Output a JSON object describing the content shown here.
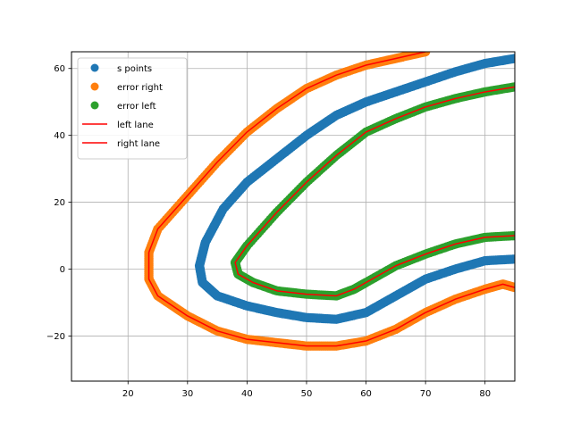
{
  "chart_data": {
    "type": "scatter",
    "title": "",
    "xlabel": "",
    "ylabel": "",
    "xlim": [
      10.5,
      85
    ],
    "ylim": [
      -33.5,
      65
    ],
    "grid": true,
    "legend_position": "upper-left",
    "xticks": [
      20,
      30,
      40,
      50,
      60,
      70,
      80
    ],
    "yticks": [
      -20,
      0,
      20,
      40,
      60
    ],
    "series": [
      {
        "name": "s points",
        "kind": "scatter",
        "color": "#1f77b4",
        "x": [
          85,
          80,
          75,
          70,
          65,
          60,
          55,
          50,
          45,
          40,
          36,
          33,
          32,
          32.5,
          35,
          40,
          45,
          50,
          55,
          60,
          65,
          70,
          75,
          80,
          85
        ],
        "y": [
          63,
          61.5,
          59,
          56,
          53,
          50,
          46,
          40,
          33,
          26,
          18,
          8,
          1,
          -4,
          -8,
          -11,
          -13,
          -14.5,
          -15,
          -13,
          -8,
          -3,
          0,
          2.5,
          3
        ]
      },
      {
        "name": "error right",
        "kind": "scatter",
        "color": "#ff7f0e",
        "x": [
          70,
          65,
          60,
          55,
          50,
          45,
          40,
          35,
          30,
          25,
          23.5,
          23.5,
          25,
          30,
          35,
          40,
          45,
          50,
          55,
          60,
          65,
          70,
          75,
          80,
          83,
          85
        ],
        "y": [
          65,
          63,
          61,
          58,
          54,
          48,
          41,
          32,
          22,
          12,
          5,
          -3,
          -8,
          -14,
          -18.5,
          -21,
          -22,
          -23,
          -23,
          -21.5,
          -18,
          -13,
          -9,
          -6,
          -4.5,
          -5.5
        ]
      },
      {
        "name": "error left",
        "kind": "scatter",
        "color": "#2ca02c",
        "x": [
          85,
          80,
          75,
          70,
          65,
          60,
          55,
          50,
          45,
          40,
          38,
          38.5,
          41,
          45,
          50,
          55,
          58,
          60,
          65,
          70,
          75,
          80,
          85
        ],
        "y": [
          54.5,
          53,
          51,
          48.5,
          45,
          41,
          34,
          26,
          17,
          7,
          2,
          -1.5,
          -4,
          -6.5,
          -7.5,
          -8,
          -6,
          -4,
          1,
          4.5,
          7.5,
          9.5,
          10
        ]
      },
      {
        "name": "left lane",
        "kind": "line",
        "color": "#ff0000",
        "x": [
          85,
          80,
          75,
          70,
          65,
          60,
          55,
          50,
          45,
          40,
          38,
          38.5,
          41,
          45,
          50,
          55,
          58,
          60,
          65,
          70,
          75,
          80,
          85
        ],
        "y": [
          54.5,
          53,
          51,
          48.5,
          45,
          41,
          34,
          26,
          17,
          7,
          2,
          -1.5,
          -4,
          -6.5,
          -7.5,
          -8,
          -6,
          -4,
          1,
          4.5,
          7.5,
          9.5,
          10
        ]
      },
      {
        "name": "right lane",
        "kind": "line",
        "color": "#ff0000",
        "x": [
          70,
          65,
          60,
          55,
          50,
          45,
          40,
          35,
          30,
          25,
          23.5,
          23.5,
          25,
          30,
          35,
          40,
          45,
          50,
          55,
          60,
          65,
          70,
          75,
          80,
          83,
          85
        ],
        "y": [
          65,
          63,
          61,
          58,
          54,
          48,
          41,
          32,
          22,
          12,
          5,
          -3,
          -8,
          -14,
          -18.5,
          -21,
          -22,
          -23,
          -23,
          -21.5,
          -18,
          -13,
          -9,
          -6,
          -4.5,
          -5.5
        ]
      }
    ]
  }
}
